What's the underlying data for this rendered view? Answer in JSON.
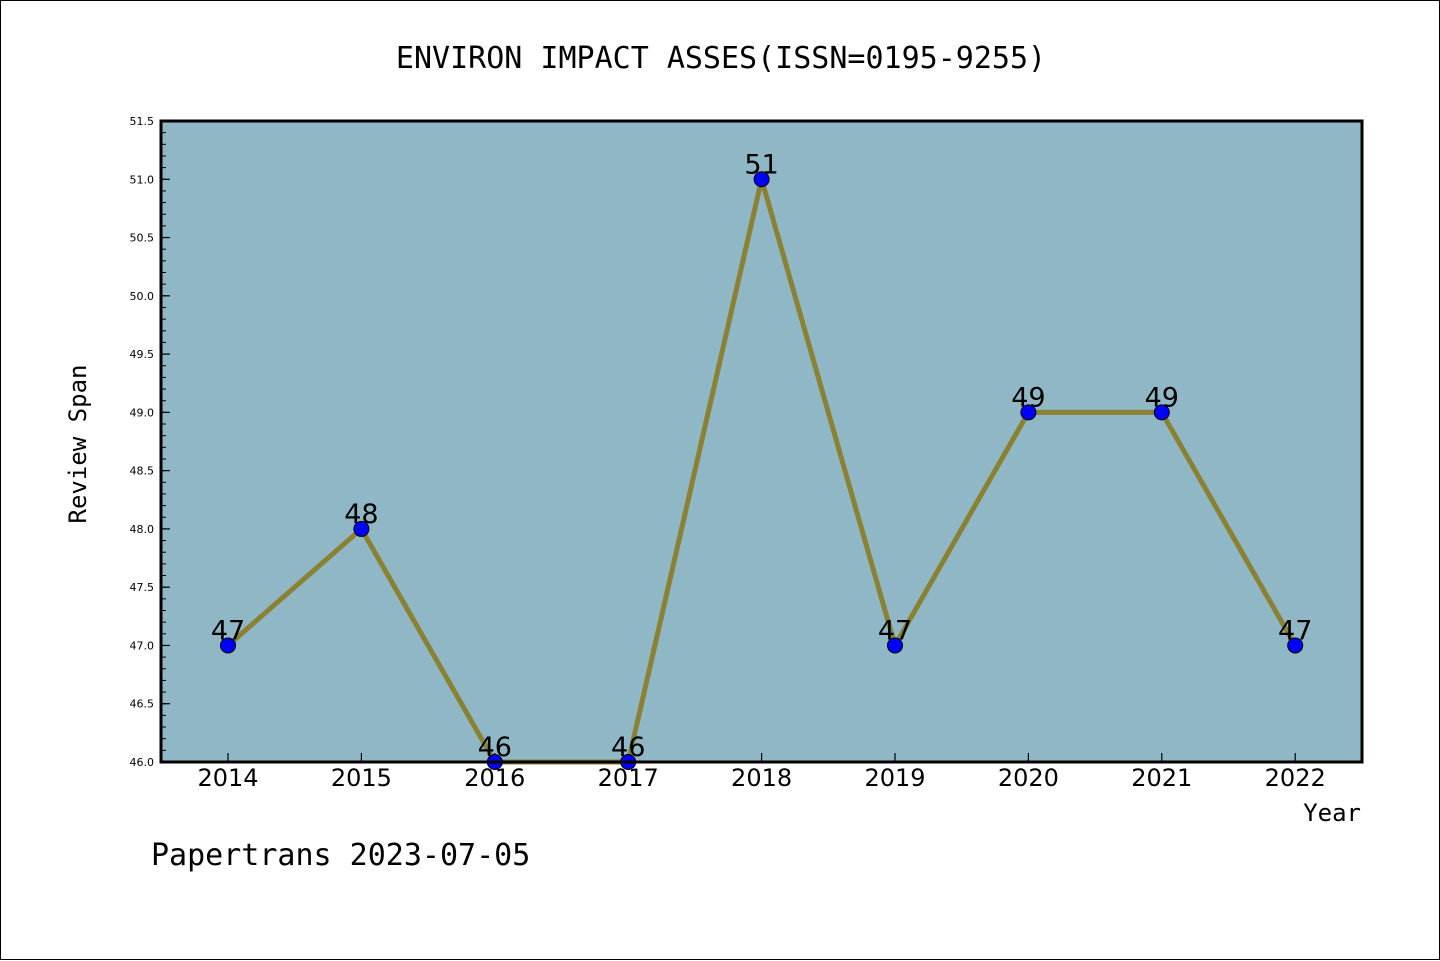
{
  "chart_data": {
    "type": "line",
    "title": "ENVIRON IMPACT ASSES(ISSN=0195-9255)",
    "xlabel": "Year",
    "ylabel": "Review Span",
    "categories": [
      "2014",
      "2015",
      "2016",
      "2017",
      "2018",
      "2019",
      "2020",
      "2021",
      "2022"
    ],
    "values": [
      47,
      48,
      46,
      46,
      51,
      47,
      49,
      49,
      47
    ],
    "data_labels": [
      "47",
      "48",
      "46",
      "46",
      "51",
      "47",
      "49",
      "49",
      "47"
    ],
    "ylim": [
      46.0,
      51.5
    ],
    "yticks": [
      "46.0",
      "46.5",
      "47.0",
      "47.5",
      "48.0",
      "48.5",
      "49.0",
      "49.5",
      "50.0",
      "50.5",
      "51.0",
      "51.5"
    ],
    "grid": false,
    "legend": "none",
    "colors": {
      "plot_background": "#8fb7c5",
      "line": "#8b8133",
      "marker": "#0000ff"
    }
  },
  "footer": {
    "watermark": "Papertrans 2023-07-05"
  }
}
